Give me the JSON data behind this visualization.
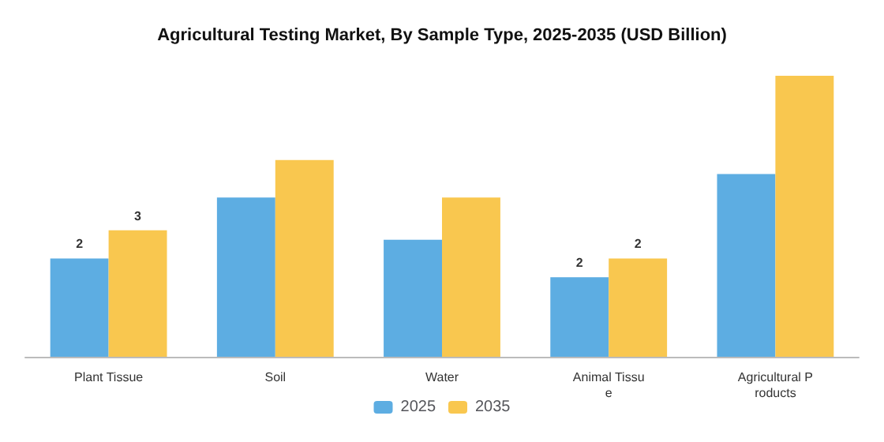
{
  "chart_data": {
    "type": "bar",
    "title": "Agricultural Testing Market, By Sample Type, 2025-2035 (USD Billion)",
    "categories": [
      "Plant Tissue",
      "Soil",
      "Water",
      "Animal Tissue",
      "Agricultural Products"
    ],
    "legend": "bottom",
    "series": [
      {
        "name": "2025",
        "color": "#5dade2",
        "values": [
          2.1,
          3.4,
          2.5,
          1.7,
          3.9
        ],
        "value_labels": [
          "2",
          null,
          null,
          "2",
          null
        ]
      },
      {
        "name": "2035",
        "color": "#f9c74f",
        "values": [
          2.7,
          4.2,
          3.4,
          2.1,
          6.0
        ],
        "value_labels": [
          "3",
          null,
          null,
          "2",
          null
        ]
      }
    ]
  }
}
